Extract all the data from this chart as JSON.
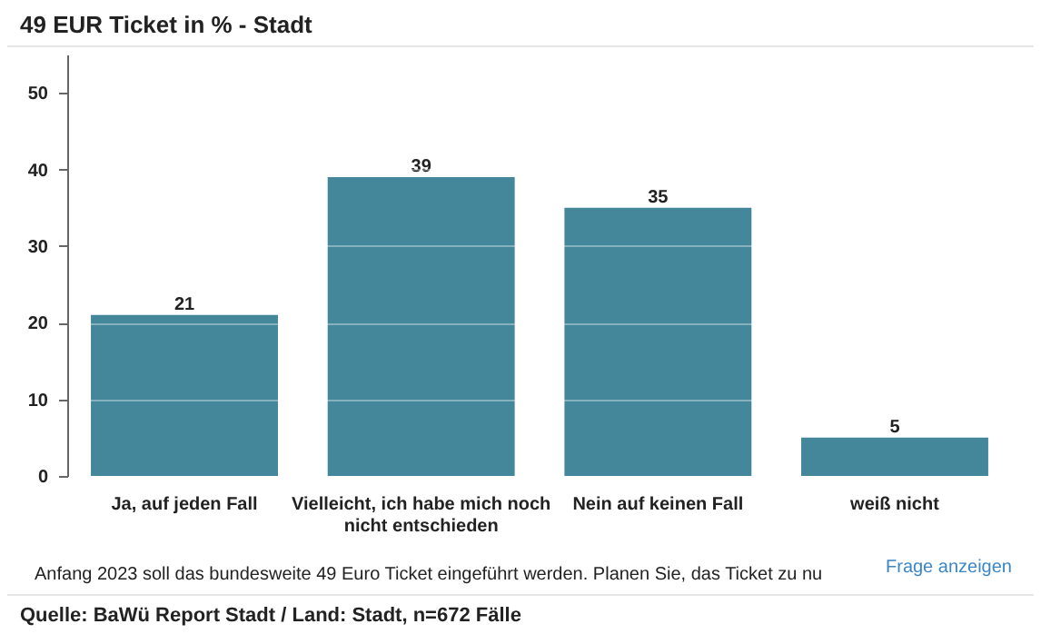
{
  "chart_data": {
    "type": "bar",
    "title": "49 EUR Ticket in % - Stadt",
    "categories": [
      "Ja, auf jeden Fall",
      "Vielleicht, ich habe mich noch nicht entschieden",
      "Nein auf keinen Fall",
      "weiß nicht"
    ],
    "values": [
      21,
      39,
      35,
      5
    ],
    "color": "#44879b",
    "ylim": [
      0,
      55
    ],
    "yticks": [
      0,
      10,
      20,
      30,
      40,
      50
    ],
    "grid": "y",
    "data_labels": true,
    "annotations": [
      "Anfang 2023 soll das bundesweite 49 Euro Ticket eingeführt werden. Planen Sie, das Ticket zu nu",
      "Frage anzeigen",
      "Quelle: BaWü Report Stadt / Land: Stadt, n=672 Fälle"
    ]
  }
}
